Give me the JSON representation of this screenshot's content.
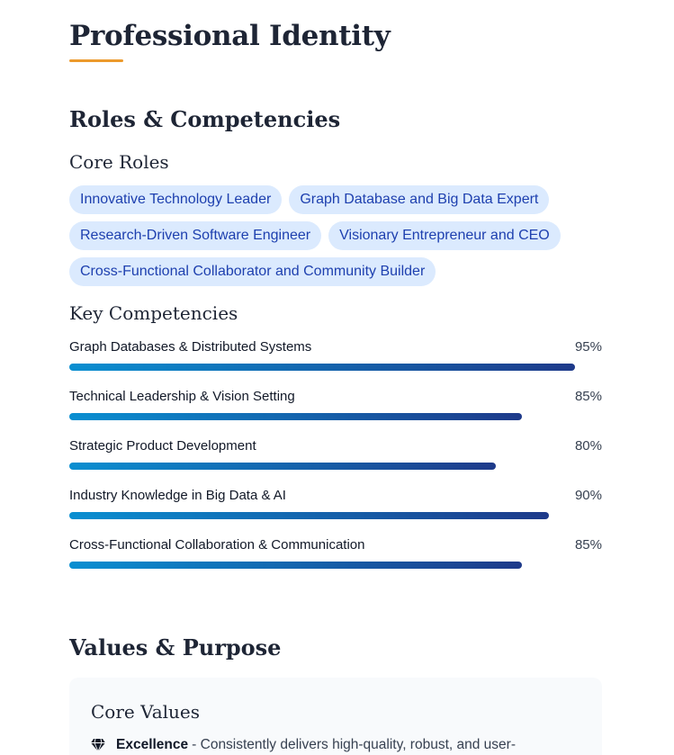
{
  "page_title": "Professional Identity",
  "roles_section": {
    "title": "Roles & Competencies",
    "core_roles_title": "Core Roles",
    "roles": [
      "Innovative Technology Leader",
      "Graph Database and Big Data Expert",
      "Research-Driven Software Engineer",
      "Visionary Entrepreneur and CEO",
      "Cross-Functional Collaborator and Community Builder"
    ],
    "key_competencies_title": "Key Competencies",
    "competencies": [
      {
        "name": "Graph Databases & Distributed Systems",
        "level": 95,
        "label": "95%"
      },
      {
        "name": "Technical Leadership & Vision Setting",
        "level": 85,
        "label": "85%"
      },
      {
        "name": "Strategic Product Development",
        "level": 80,
        "label": "80%"
      },
      {
        "name": "Industry Knowledge in Big Data & AI",
        "level": 90,
        "label": "90%"
      },
      {
        "name": "Cross-Functional Collaboration & Communication",
        "level": 85,
        "label": "85%"
      }
    ]
  },
  "values_section": {
    "title": "Values & Purpose",
    "core_values_title": "Core Values",
    "values": [
      {
        "icon": "gem-icon",
        "name": "Excellence",
        "text": "- Consistently delivers high-quality, robust, and user-"
      }
    ]
  },
  "colors": {
    "accent_underline": "#ec9a2c",
    "chip_bg": "#dbeafe",
    "chip_text": "#1e40af",
    "bar_start": "#0a8fd1",
    "bar_end": "#1e3a8a"
  }
}
